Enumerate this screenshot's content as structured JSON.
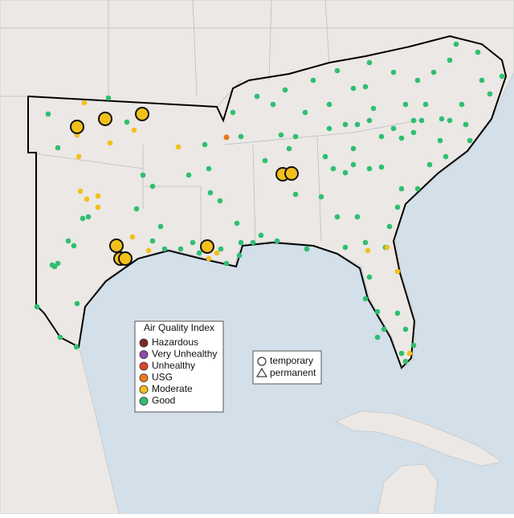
{
  "legend": {
    "title": "Air Quality Index",
    "items": [
      {
        "label": "Hazardous",
        "color": "#7e2a2a"
      },
      {
        "label": "Very Unhealthy",
        "color": "#8e4cab"
      },
      {
        "label": "Unhealthy",
        "color": "#e0432b"
      },
      {
        "label": "USG",
        "color": "#e87a1e"
      },
      {
        "label": "Moderate",
        "color": "#f2c01b"
      },
      {
        "label": "Good",
        "color": "#2fbf71"
      }
    ]
  },
  "shape_legend": {
    "items": [
      "temporary",
      "permanent"
    ]
  }
}
